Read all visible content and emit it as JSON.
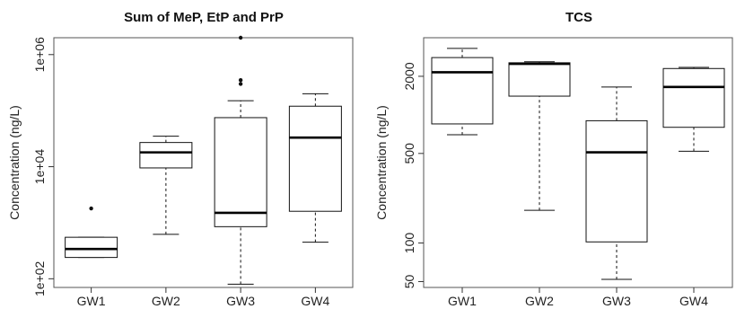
{
  "chart_data": [
    {
      "type": "box",
      "title": "Sum of MeP, EtP and PrP",
      "ylabel": "Concentration (ng/L)",
      "y_scale": "log",
      "ylim": [
        70,
        2000000
      ],
      "yticks": [
        100,
        10000,
        1000000
      ],
      "ytick_labels": [
        "1e+02",
        "1e+04",
        "1e+06"
      ],
      "categories": [
        "GW1",
        "GW2",
        "GW3",
        "GW4"
      ],
      "boxes": [
        {
          "name": "GW1",
          "min": 240,
          "q1": 240,
          "median": 340,
          "q3": 550,
          "max": 550,
          "outliers": [
            1800
          ]
        },
        {
          "name": "GW2",
          "min": 620,
          "q1": 9500,
          "median": 18000,
          "q3": 27000,
          "max": 35000,
          "outliers": []
        },
        {
          "name": "GW3",
          "min": 80,
          "q1": 850,
          "median": 1500,
          "q3": 75000,
          "max": 150000,
          "outliers": [
            300000,
            350000,
            2000000
          ]
        },
        {
          "name": "GW4",
          "min": 450,
          "q1": 1600,
          "median": 33000,
          "q3": 120000,
          "max": 200000,
          "outliers": []
        }
      ]
    },
    {
      "type": "box",
      "title": "TCS",
      "ylabel": "Concentration (ng/L)",
      "y_scale": "log",
      "ylim": [
        45,
        4000
      ],
      "yticks": [
        50,
        100,
        500,
        2000
      ],
      "ytick_labels": [
        "50",
        "100",
        "500",
        "2000"
      ],
      "categories": [
        "GW1",
        "GW2",
        "GW3",
        "GW4"
      ],
      "boxes": [
        {
          "name": "GW1",
          "min": 700,
          "q1": 850,
          "median": 2150,
          "q3": 2800,
          "max": 3300,
          "outliers": []
        },
        {
          "name": "GW2",
          "min": 180,
          "q1": 1400,
          "median": 2500,
          "q3": 2550,
          "max": 2600,
          "outliers": []
        },
        {
          "name": "GW3",
          "min": 52,
          "q1": 102,
          "median": 510,
          "q3": 900,
          "max": 1650,
          "outliers": []
        },
        {
          "name": "GW4",
          "min": 520,
          "q1": 800,
          "median": 1650,
          "q3": 2300,
          "max": 2350,
          "outliers": []
        }
      ]
    }
  ]
}
